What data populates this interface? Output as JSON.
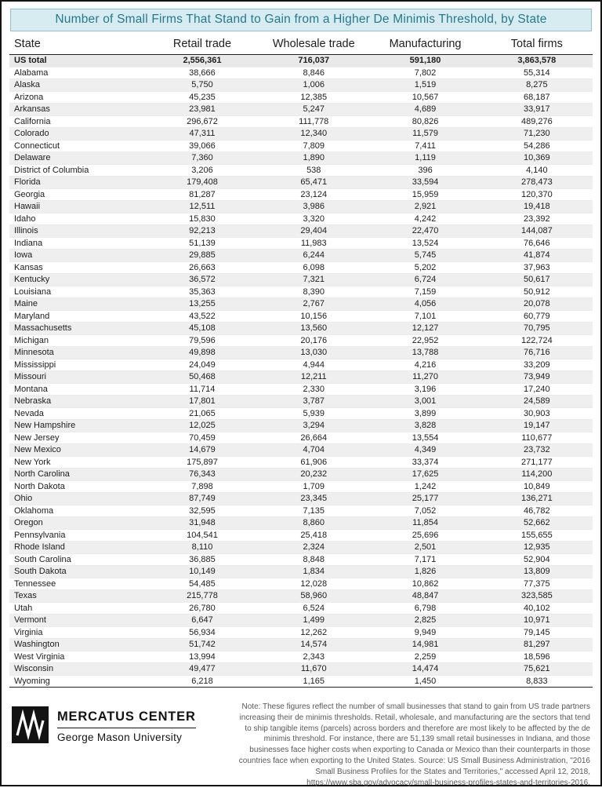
{
  "chart_data": {
    "type": "table",
    "title": "Number of Small Firms That Stand to Gain from a Higher De Minimis Threshold, by State",
    "columns": [
      "State",
      "Retail trade",
      "Wholesale trade",
      "Manufacturing",
      "Total firms"
    ],
    "rows": [
      [
        "US total",
        "2,556,361",
        "716,037",
        "591,180",
        "3,863,578"
      ],
      [
        "Alabama",
        "38,666",
        "8,846",
        "7,802",
        "55,314"
      ],
      [
        "Alaska",
        "5,750",
        "1,006",
        "1,519",
        "8,275"
      ],
      [
        "Arizona",
        "45,235",
        "12,385",
        "10,567",
        "68,187"
      ],
      [
        "Arkansas",
        "23,981",
        "5,247",
        "4,689",
        "33,917"
      ],
      [
        "California",
        "296,672",
        "111,778",
        "80,826",
        "489,276"
      ],
      [
        "Colorado",
        "47,311",
        "12,340",
        "11,579",
        "71,230"
      ],
      [
        "Connecticut",
        "39,066",
        "7,809",
        "7,411",
        "54,286"
      ],
      [
        "Delaware",
        "7,360",
        "1,890",
        "1,119",
        "10,369"
      ],
      [
        "District of Columbia",
        "3,206",
        "538",
        "396",
        "4,140"
      ],
      [
        "Florida",
        "179,408",
        "65,471",
        "33,594",
        "278,473"
      ],
      [
        "Georgia",
        "81,287",
        "23,124",
        "15,959",
        "120,370"
      ],
      [
        "Hawaii",
        "12,511",
        "3,986",
        "2,921",
        "19,418"
      ],
      [
        "Idaho",
        "15,830",
        "3,320",
        "4,242",
        "23,392"
      ],
      [
        "Illinois",
        "92,213",
        "29,404",
        "22,470",
        "144,087"
      ],
      [
        "Indiana",
        "51,139",
        "11,983",
        "13,524",
        "76,646"
      ],
      [
        "Iowa",
        "29,885",
        "6,244",
        "5,745",
        "41,874"
      ],
      [
        "Kansas",
        "26,663",
        "6,098",
        "5,202",
        "37,963"
      ],
      [
        "Kentucky",
        "36,572",
        "7,321",
        "6,724",
        "50,617"
      ],
      [
        "Louisiana",
        "35,363",
        "8,390",
        "7,159",
        "50,912"
      ],
      [
        "Maine",
        "13,255",
        "2,767",
        "4,056",
        "20,078"
      ],
      [
        "Maryland",
        "43,522",
        "10,156",
        "7,101",
        "60,779"
      ],
      [
        "Massachusetts",
        "45,108",
        "13,560",
        "12,127",
        "70,795"
      ],
      [
        "Michigan",
        "79,596",
        "20,176",
        "22,952",
        "122,724"
      ],
      [
        "Minnesota",
        "49,898",
        "13,030",
        "13,788",
        "76,716"
      ],
      [
        "Mississippi",
        "24,049",
        "4,944",
        "4,216",
        "33,209"
      ],
      [
        "Missouri",
        "50,468",
        "12,211",
        "11,270",
        "73,949"
      ],
      [
        "Montana",
        "11,714",
        "2,330",
        "3,196",
        "17,240"
      ],
      [
        "Nebraska",
        "17,801",
        "3,787",
        "3,001",
        "24,589"
      ],
      [
        "Nevada",
        "21,065",
        "5,939",
        "3,899",
        "30,903"
      ],
      [
        "New Hampshire",
        "12,025",
        "3,294",
        "3,828",
        "19,147"
      ],
      [
        "New Jersey",
        "70,459",
        "26,664",
        "13,554",
        "110,677"
      ],
      [
        "New Mexico",
        "14,679",
        "4,704",
        "4,349",
        "23,732"
      ],
      [
        "New York",
        "175,897",
        "61,906",
        "33,374",
        "271,177"
      ],
      [
        "North Carolina",
        "76,343",
        "20,232",
        "17,625",
        "114,200"
      ],
      [
        "North Dakota",
        "7,898",
        "1,709",
        "1,242",
        "10,849"
      ],
      [
        "Ohio",
        "87,749",
        "23,345",
        "25,177",
        "136,271"
      ],
      [
        "Oklahoma",
        "32,595",
        "7,135",
        "7,052",
        "46,782"
      ],
      [
        "Oregon",
        "31,948",
        "8,860",
        "11,854",
        "52,662"
      ],
      [
        "Pennsylvania",
        "104,541",
        "25,418",
        "25,696",
        "155,655"
      ],
      [
        "Rhode Island",
        "8,110",
        "2,324",
        "2,501",
        "12,935"
      ],
      [
        "South Carolina",
        "36,885",
        "8,848",
        "7,171",
        "52,904"
      ],
      [
        "South Dakota",
        "10,149",
        "1,834",
        "1,826",
        "13,809"
      ],
      [
        "Tennessee",
        "54,485",
        "12,028",
        "10,862",
        "77,375"
      ],
      [
        "Texas",
        "215,778",
        "58,960",
        "48,847",
        "323,585"
      ],
      [
        "Utah",
        "26,780",
        "6,524",
        "6,798",
        "40,102"
      ],
      [
        "Vermont",
        "6,647",
        "1,499",
        "2,825",
        "10,971"
      ],
      [
        "Virginia",
        "56,934",
        "12,262",
        "9,949",
        "79,145"
      ],
      [
        "Washington",
        "51,742",
        "14,574",
        "14,981",
        "81,297"
      ],
      [
        "West Virginia",
        "13,994",
        "2,343",
        "2,259",
        "18,596"
      ],
      [
        "Wisconsin",
        "49,477",
        "11,670",
        "14,474",
        "75,621"
      ],
      [
        "Wyoming",
        "6,218",
        "1,165",
        "1,450",
        "8,833"
      ]
    ],
    "layout_hints": {
      "zebra_striping": true,
      "total_row_index": 0,
      "state_column_align": "left",
      "number_columns_align": "center"
    }
  },
  "footer": {
    "logo": {
      "icon": "mercatus-m-logo",
      "title": "MERCATUS CENTER",
      "subtitle": "George Mason University"
    },
    "note": "Note: These figures reflect the number of small businesses that stand to gain from US trade partners increasing their de minimis thresholds. Retail, wholesale, and manufacturing are the sectors that tend to ship tangible items (parcels) across borders and therefore are most likely to be affected by the de minimis threshold. For instance, there are 51,139 small retail businesses in Indiana, and those businesses face higher costs when exporting to Canada or Mexico than their counterparts in those countries face when exporting to the United States. Source: US Small Business Administration, \"2016 Small Business Profiles for the States and Territories,\" accessed April 12, 2018, https://www.sba.gov/advocacy/small-business-profiles-states-and-territories-2016."
  },
  "colors": {
    "title_text": "#25798f",
    "title_background": "#d7ecf1",
    "zebra_row": "#efefef",
    "total_row": "#e9e9e9",
    "header_rule": "#231f20",
    "note_text": "#57585a",
    "page_border": "#141414"
  }
}
